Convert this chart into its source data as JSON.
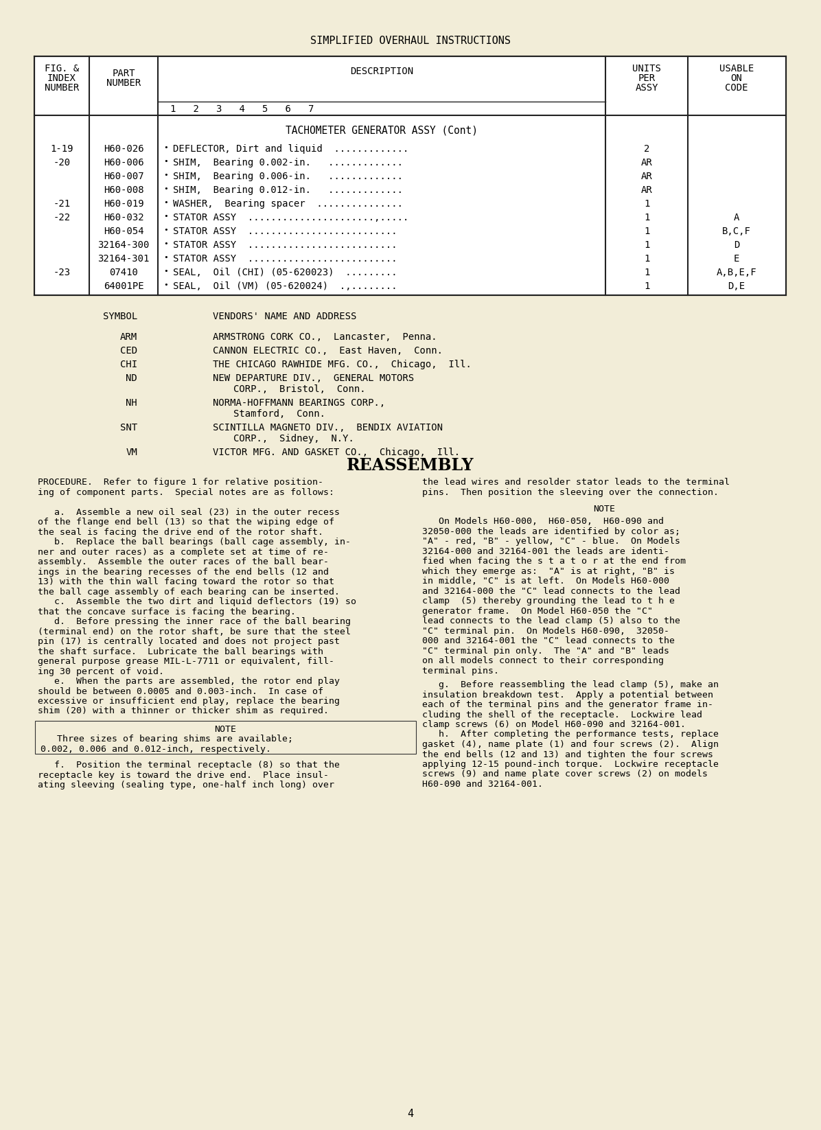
{
  "bg_color": "#f2edd8",
  "page_title": "SIMPLIFIED OVERHAUL INSTRUCTIONS",
  "page_number": "4",
  "table": {
    "section_title": "TACHOMETER GENERATOR ASSY (Cont)",
    "rows": [
      {
        "fig": "1-19",
        "part": "H60-026",
        "desc": "DEFLECTOR, Dirt and liquid  .............",
        "units": "2",
        "code": ""
      },
      {
        "fig": "-20",
        "part": "H60-006",
        "desc": "SHIM,  Bearing 0.002-in.   .............",
        "units": "AR",
        "code": ""
      },
      {
        "fig": "",
        "part": "H60-007",
        "desc": "SHIM,  Bearing 0.006-in.   .............",
        "units": "AR",
        "code": ""
      },
      {
        "fig": "",
        "part": "H60-008",
        "desc": "SHIM,  Bearing 0.012-in.   .............",
        "units": "AR",
        "code": ""
      },
      {
        "fig": "-21",
        "part": "H60-019",
        "desc": "WASHER,  Bearing spacer  ...............",
        "units": "1",
        "code": ""
      },
      {
        "fig": "-22",
        "part": "H60-032",
        "desc": "STATOR ASSY  ......................,.....",
        "units": "1",
        "code": "A"
      },
      {
        "fig": "",
        "part": "H60-054",
        "desc": "STATOR ASSY  ..........................",
        "units": "1",
        "code": "B,C,F"
      },
      {
        "fig": "",
        "part": "32164-300",
        "desc": "STATOR ASSY  ..........................",
        "units": "1",
        "code": "D"
      },
      {
        "fig": "",
        "part": "32164-301",
        "desc": "STATOR ASSY  ..........................",
        "units": "1",
        "code": "E"
      },
      {
        "fig": "-23",
        "part": "07410",
        "desc": "SEAL,  Oil (CHI) (05-620023)  .........",
        "units": "1",
        "code": "A,B,E,F"
      },
      {
        "fig": "",
        "part": "64001PE",
        "desc": "SEAL,  Oil (VM) (05-620024)  .,........",
        "units": "1",
        "code": "D,E"
      }
    ]
  },
  "vendors": {
    "header_symbol": "SYMBOL",
    "header_name": "VENDORS' NAME AND ADDRESS",
    "entries": [
      {
        "symbol": "ARM",
        "name1": "ARMSTRONG CORK CO.,  Lancaster,  Penna.",
        "name2": ""
      },
      {
        "symbol": "CED",
        "name1": "CANNON ELECTRIC CO.,  East Haven,  Conn.",
        "name2": ""
      },
      {
        "symbol": "CHI",
        "name1": "THE CHICAGO RAWHIDE MFG. CO.,  Chicago,  Ill.",
        "name2": ""
      },
      {
        "symbol": "ND",
        "name1": "NEW DEPARTURE DIV.,  GENERAL MOTORS",
        "name2": "CORP.,  Bristol,  Conn."
      },
      {
        "symbol": "NH",
        "name1": "NORMA-HOFFMANN BEARINGS CORP.,",
        "name2": "Stamford,  Conn."
      },
      {
        "symbol": "SNT",
        "name1": "SCINTILLA MAGNETO DIV.,  BENDIX AVIATION",
        "name2": "CORP.,  Sidney,  N.Y."
      },
      {
        "symbol": "VM",
        "name1": "VICTOR MFG. AND GASKET CO.,  Chicago,  Ill.",
        "name2": ""
      }
    ]
  },
  "reassembly_title": "REASSEMBLY",
  "procedure_left": [
    "PROCEDURE.  Refer to figure 1 for relative position-",
    "ing of component parts.  Special notes are as follows:",
    "",
    "   a.  Assemble a new oil seal (23) in the outer recess",
    "of the flange end bell (13) so that the wiping edge of",
    "the seal is facing the drive end of the rotor shaft.",
    "   b.  Replace the ball bearings (ball cage assembly, in-",
    "ner and outer races) as a complete set at time of re-",
    "assembly.  Assemble the outer races of the ball bear-",
    "ings in the bearing recesses of the end bells (12 and",
    "13) with the thin wall facing toward the rotor so that",
    "the ball cage assembly of each bearing can be inserted.",
    "   c.  Assemble the two dirt and liquid deflectors (19) so",
    "that the concave surface is facing the bearing.",
    "   d.  Before pressing the inner race of the ball bearing",
    "(terminal end) on the rotor shaft, be sure that the steel",
    "pin (17) is centrally located and does not project past",
    "the shaft surface.  Lubricate the ball bearings with",
    "general purpose grease MIL-L-7711 or equivalent, fill-",
    "ing 30 percent of void.",
    "   e.  When the parts are assembled, the rotor end play",
    "should be between 0.0005 and 0.003-inch.  In case of",
    "excessive or insufficient end play, replace the bearing",
    "shim (20) with a thinner or thicker shim as required."
  ],
  "note_left_title": "NOTE",
  "note_left_text": [
    "   Three sizes of bearing shims are available;",
    "0.002, 0.006 and 0.012-inch, respectively."
  ],
  "procedure_left2": [
    "   f.  Position the terminal receptacle (8) so that the",
    "receptacle key is toward the drive end.  Place insul-",
    "ating sleeving (sealing type, one-half inch long) over"
  ],
  "procedure_right1": [
    "the lead wires and resolder stator leads to the terminal",
    "pins.  Then position the sleeving over the connection."
  ],
  "note_right_title": "NOTE",
  "note_right_text": [
    "   On Models H60-000,  H60-050,  H60-090 and",
    "32050-000 the leads are identified by color as;",
    "\"A\" - red, \"B\" - yellow, \"C\" - blue.  On Models",
    "32164-000 and 32164-001 the leads are identi-",
    "fied when facing the s t a t o r at the end from",
    "which they emerge as:  \"A\" is at right, \"B\" is",
    "in middle, \"C\" is at left.  On Models H60-000",
    "and 32164-000 the \"C\" lead connects to the lead",
    "clamp  (5) thereby grounding the lead to t h e",
    "generator frame.  On Model H60-050 the \"C\"",
    "lead connects to the lead clamp (5) also to the",
    "\"C\" terminal pin.  On Models H60-090,  32050-",
    "000 and 32164-001 the \"C\" lead connects to the",
    "\"C\" terminal pin only.  The \"A\" and \"B\" leads",
    "on all models connect to their corresponding",
    "terminal pins."
  ],
  "procedure_right2": [
    "   g.  Before reassembling the lead clamp (5), make an",
    "insulation breakdown test.  Apply a potential between",
    "each of the terminal pins and the generator frame in-",
    "cluding the shell of the receptacle.  Lockwire lead",
    "clamp screws (6) on Model H60-090 and 32164-001.",
    "   h.  After completing the performance tests, replace",
    "gasket (4), name plate (1) and four screws (2).  Align",
    "the end bells (12 and 13) and tighten the four screws",
    "applying 12-15 pound-inch torque.  Lockwire receptacle",
    "screws (9) and name plate cover screws (2) on models",
    "H60-090 and 32164-001."
  ]
}
